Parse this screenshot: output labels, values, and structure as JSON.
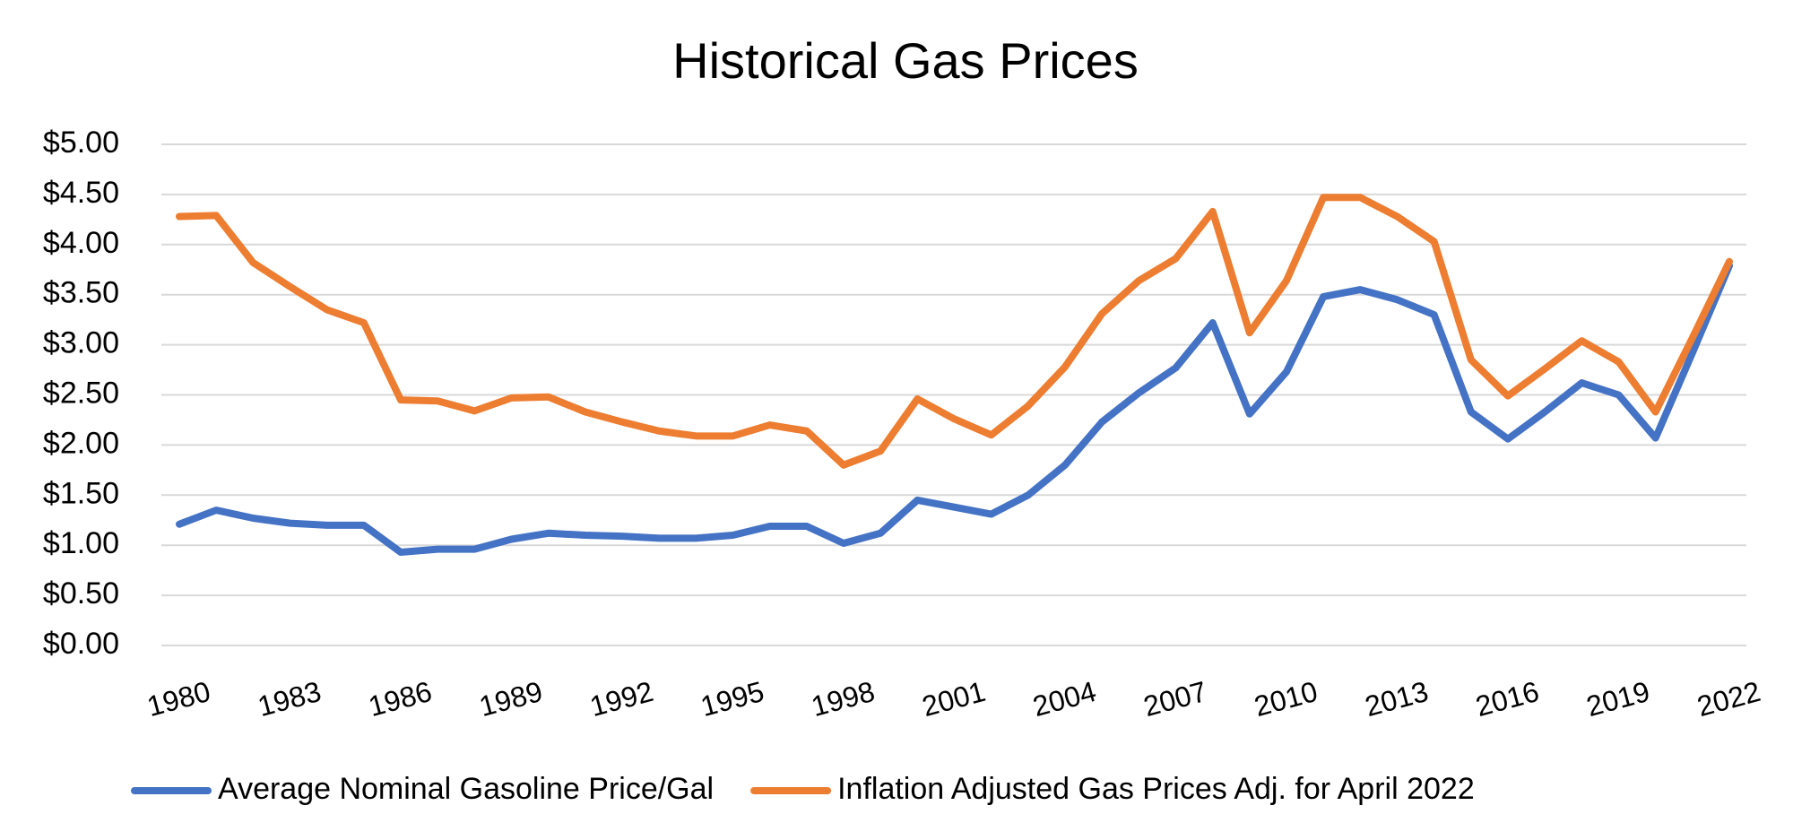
{
  "chart_data": {
    "type": "line",
    "title": "Historical Gas Prices",
    "x": [
      1980,
      1981,
      1982,
      1983,
      1984,
      1985,
      1986,
      1987,
      1988,
      1989,
      1990,
      1991,
      1992,
      1993,
      1994,
      1995,
      1996,
      1997,
      1998,
      1999,
      2000,
      2001,
      2002,
      2003,
      2004,
      2005,
      2006,
      2007,
      2008,
      2009,
      2010,
      2011,
      2012,
      2013,
      2014,
      2015,
      2016,
      2017,
      2018,
      2019,
      2020,
      2021,
      2022
    ],
    "xlim": [
      1980,
      2022
    ],
    "xticks": [
      1980,
      1983,
      1986,
      1989,
      1992,
      1995,
      1998,
      2001,
      2004,
      2007,
      2010,
      2013,
      2016,
      2019,
      2022
    ],
    "ylim": [
      0,
      5
    ],
    "yticks": [
      {
        "value": 0,
        "label": "$0.00"
      },
      {
        "value": 0.5,
        "label": "$0.50"
      },
      {
        "value": 1,
        "label": "$1.00"
      },
      {
        "value": 1.5,
        "label": "$1.50"
      },
      {
        "value": 2,
        "label": "$2.00"
      },
      {
        "value": 2.5,
        "label": "$2.50"
      },
      {
        "value": 3,
        "label": "$3.00"
      },
      {
        "value": 3.5,
        "label": "$3.50"
      },
      {
        "value": 4,
        "label": "$4.00"
      },
      {
        "value": 4.5,
        "label": "$4.50"
      },
      {
        "value": 5,
        "label": "$5.00"
      }
    ],
    "grid": true,
    "legend": "bottom",
    "series": [
      {
        "name": "Average Nominal Gasoline Price/Gal",
        "color": "#4472c4",
        "values": [
          1.21,
          1.35,
          1.27,
          1.22,
          1.2,
          1.2,
          0.93,
          0.96,
          0.96,
          1.06,
          1.12,
          1.1,
          1.09,
          1.07,
          1.07,
          1.1,
          1.19,
          1.19,
          1.02,
          1.12,
          1.45,
          1.38,
          1.31,
          1.5,
          1.8,
          2.23,
          2.52,
          2.77,
          3.22,
          2.31,
          2.73,
          3.48,
          3.55,
          3.45,
          3.3,
          2.33,
          2.06,
          2.33,
          2.62,
          2.5,
          2.07,
          2.92,
          3.79
        ]
      },
      {
        "name": "Inflation Adjusted Gas Prices Adj. for April 2022",
        "color": "#ed7d31",
        "values": [
          4.28,
          4.29,
          3.82,
          3.58,
          3.35,
          3.22,
          2.45,
          2.44,
          2.34,
          2.47,
          2.48,
          2.33,
          2.23,
          2.14,
          2.09,
          2.09,
          2.2,
          2.14,
          1.8,
          1.94,
          2.46,
          2.26,
          2.1,
          2.39,
          2.78,
          3.31,
          3.64,
          3.86,
          4.33,
          3.12,
          3.64,
          4.47,
          4.47,
          4.28,
          4.03,
          2.85,
          2.49,
          2.76,
          3.04,
          2.83,
          2.33,
          3.07,
          3.83
        ]
      }
    ]
  }
}
